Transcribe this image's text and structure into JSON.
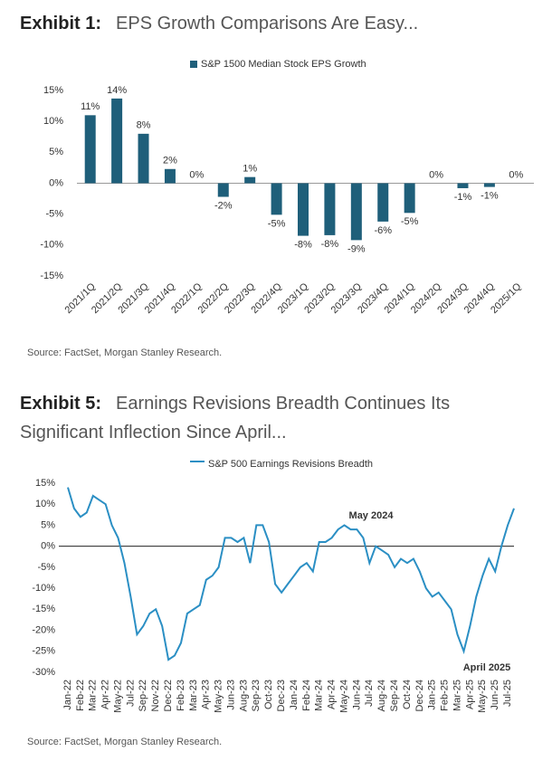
{
  "exhibits": [
    {
      "label": "Exhibit 1:",
      "title": "EPS Growth Comparisons Are Easy...",
      "source": "Source: FactSet, Morgan Stanley Research."
    },
    {
      "label": "Exhibit 5:",
      "title": "Earnings Revisions Breadth Continues Its Significant Inflection Since April...",
      "source": "Source: FactSet, Morgan Stanley Research."
    }
  ],
  "chart_data": [
    {
      "type": "bar",
      "series": [
        {
          "name": "S&P 1500 Median Stock EPS Growth",
          "color": "#1f5f7a",
          "values": [
            11,
            13.7,
            8,
            2.3,
            0,
            -2.2,
            1,
            -5.1,
            -8.5,
            -8.4,
            -9.2,
            -6.2,
            -4.8,
            0,
            -0.8,
            -0.6,
            0
          ],
          "value_labels": [
            "11%",
            "14%",
            "8%",
            "2%",
            "0%",
            "-2%",
            "1%",
            "-5%",
            "-8%",
            "-8%",
            "-9%",
            "-6%",
            "-5%",
            "0%",
            "-1%",
            "-1%",
            "0%"
          ]
        }
      ],
      "categories": [
        "2021/1Q",
        "2021/2Q",
        "2021/3Q",
        "2021/4Q",
        "2022/1Q",
        "2022/2Q",
        "2022/3Q",
        "2022/4Q",
        "2023/1Q",
        "2023/2Q",
        "2023/3Q",
        "2023/4Q",
        "2024/1Q",
        "2024/2Q",
        "2024/3Q",
        "2024/4Q",
        "2025/1Q"
      ],
      "ylim": [
        -15,
        15
      ],
      "yticks": [
        {
          "value": 15,
          "label": "15%"
        },
        {
          "value": 10,
          "label": "10%"
        },
        {
          "value": 5,
          "label": "5%"
        },
        {
          "value": 0,
          "label": "0%"
        },
        {
          "value": -5,
          "label": "-5%"
        },
        {
          "value": -10,
          "label": "-10%"
        },
        {
          "value": -15,
          "label": "-15%"
        }
      ]
    },
    {
      "type": "line",
      "series": [
        {
          "name": "S&P 500 Earnings Revisions Breadth",
          "color": "#2b8fc4",
          "values": [
            14,
            9,
            7,
            8,
            12,
            11,
            10,
            5,
            2,
            -4,
            -12,
            -21,
            -19,
            -16,
            -15,
            -19,
            -27,
            -26,
            -23,
            -16,
            -15,
            -14,
            -8,
            -7,
            -5,
            2,
            2,
            1,
            2,
            -4,
            5,
            5,
            1,
            -9,
            -11,
            -9,
            -7,
            -5,
            -4,
            -6,
            1,
            1,
            2,
            4,
            5,
            4,
            4,
            2,
            -4,
            0,
            -1,
            -2,
            -5,
            -3,
            -4,
            -3,
            -6,
            -10,
            -12,
            -11,
            -13,
            -15,
            -21,
            -25,
            -19,
            -12,
            -7,
            -3,
            -6,
            0,
            5,
            9
          ]
        }
      ],
      "categories": [
        "Jan-22",
        null,
        "Feb-22",
        null,
        "Mar-22",
        null,
        "Apr-22",
        null,
        "May-22",
        null,
        "Jul-22",
        null,
        "Sep-22",
        null,
        "Nov-22",
        null,
        "Dec-22",
        null,
        "Feb-23",
        null,
        "Mar-23",
        null,
        "Apr-23",
        null,
        "May-23",
        null,
        "Jun-23",
        null,
        "Aug-23",
        null,
        "Sep-23",
        null,
        "Oct-23",
        null,
        "Dec-23",
        null,
        "Jan-24",
        null,
        "Feb-24",
        null,
        "Mar-24",
        null,
        "Apr-24",
        null,
        "May-24",
        null,
        "Jun-24",
        null,
        "Jul-24",
        null,
        "Aug-24",
        null,
        "Sep-24",
        null,
        "Oct-24",
        null,
        "Dec-24",
        null,
        "Jan-25",
        null,
        "Feb-25",
        null,
        "Mar-25",
        null,
        "Apr-25",
        null,
        "May-25",
        null,
        "Jun-25",
        null,
        "Jul-25",
        null
      ],
      "annotations": [
        "May 2024",
        "April 2025"
      ],
      "ylim": [
        -30,
        15
      ],
      "yticks": [
        {
          "value": 15,
          "label": "15%"
        },
        {
          "value": 10,
          "label": "10%"
        },
        {
          "value": 5,
          "label": "5%"
        },
        {
          "value": 0,
          "label": "0%"
        },
        {
          "value": -5,
          "label": "-5%"
        },
        {
          "value": -10,
          "label": "-10%"
        },
        {
          "value": -15,
          "label": "-15%"
        },
        {
          "value": -20,
          "label": "-20%"
        },
        {
          "value": -25,
          "label": "-25%"
        },
        {
          "value": -30,
          "label": "-30%"
        }
      ]
    }
  ]
}
